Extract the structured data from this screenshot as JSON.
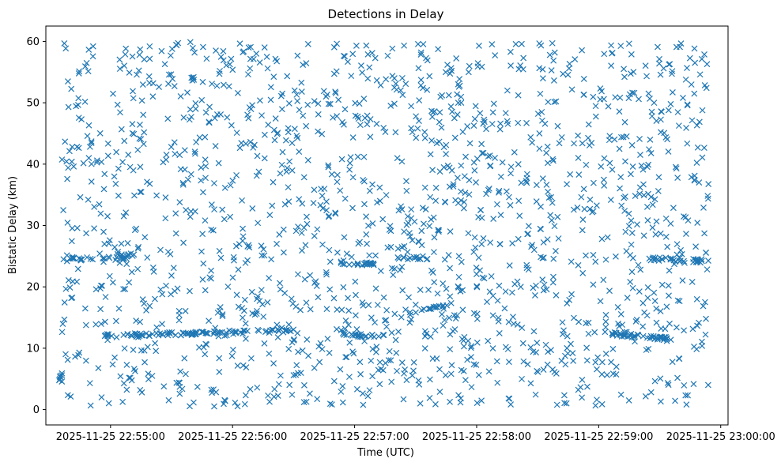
{
  "chart_data": {
    "type": "scatter",
    "title": "Detections in Delay",
    "xlabel": "Time (UTC)",
    "ylabel": "Bistatic Delay (km)",
    "x_unit": "minutes since 2025-11-25 22:54:00 UTC",
    "xlim": [
      0.47,
      6.06
    ],
    "ylim": [
      -2.5,
      62.5
    ],
    "x_ticks": [
      {
        "value": 1,
        "label": "2025-11-25 22:55:00"
      },
      {
        "value": 2,
        "label": "2025-11-25 22:56:00"
      },
      {
        "value": 3,
        "label": "2025-11-25 22:57:00"
      },
      {
        "value": 4,
        "label": "2025-11-25 22:58:00"
      },
      {
        "value": 5,
        "label": "2025-11-25 22:59:00"
      },
      {
        "value": 6,
        "label": "2025-11-25 23:00:00"
      }
    ],
    "y_ticks": [
      {
        "value": 0,
        "label": "0"
      },
      {
        "value": 10,
        "label": "10"
      },
      {
        "value": 20,
        "label": "20"
      },
      {
        "value": 30,
        "label": "30"
      },
      {
        "value": 40,
        "label": "40"
      },
      {
        "value": 50,
        "label": "50"
      },
      {
        "value": 60,
        "label": "60"
      }
    ],
    "marker": "x",
    "series_color": "#1f77b4",
    "grid": false,
    "series": [
      {
        "name": "Detections",
        "x_range": [
          0.6,
          5.9
        ],
        "y_range": [
          0.5,
          60
        ],
        "point_count": 2000,
        "note": "Dense uniform scatter of detections across the full range, with horizontal tracks visible near 12 km (0.9–2.5, 2.9–3.2, 5.1–5.6 min), near 24.5 km (0.6–1.2, 3.3–3.6, 5.4–5.9 min) and near 24 km (2.8–3.2 min)."
      }
    ]
  }
}
